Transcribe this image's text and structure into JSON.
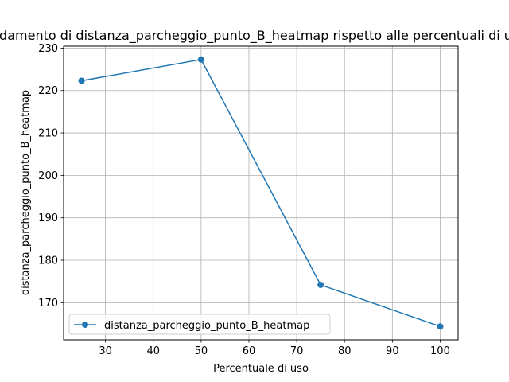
{
  "chart_data": {
    "type": "line",
    "title": "Andamento di distanza_parcheggio_punto_B_heatmap rispetto alle percentuali di uso",
    "xlabel": "Percentuale di uso",
    "ylabel": "distanza_parcheggio_punto_B_heatmap",
    "x": [
      25,
      50,
      75,
      100
    ],
    "series": [
      {
        "name": "distanza_parcheggio_punto_B_heatmap",
        "values": [
          222.3,
          227.3,
          174.2,
          164.4
        ],
        "color": "#1f77b4",
        "marker": "circle"
      }
    ],
    "xlim": [
      21.25,
      103.75
    ],
    "ylim": [
      161.25,
      230.45
    ],
    "xticks": [
      30,
      40,
      50,
      60,
      70,
      80,
      90,
      100
    ],
    "yticks": [
      170,
      180,
      190,
      200,
      210,
      220,
      230
    ],
    "grid": true,
    "legend_position": "lower-left"
  }
}
